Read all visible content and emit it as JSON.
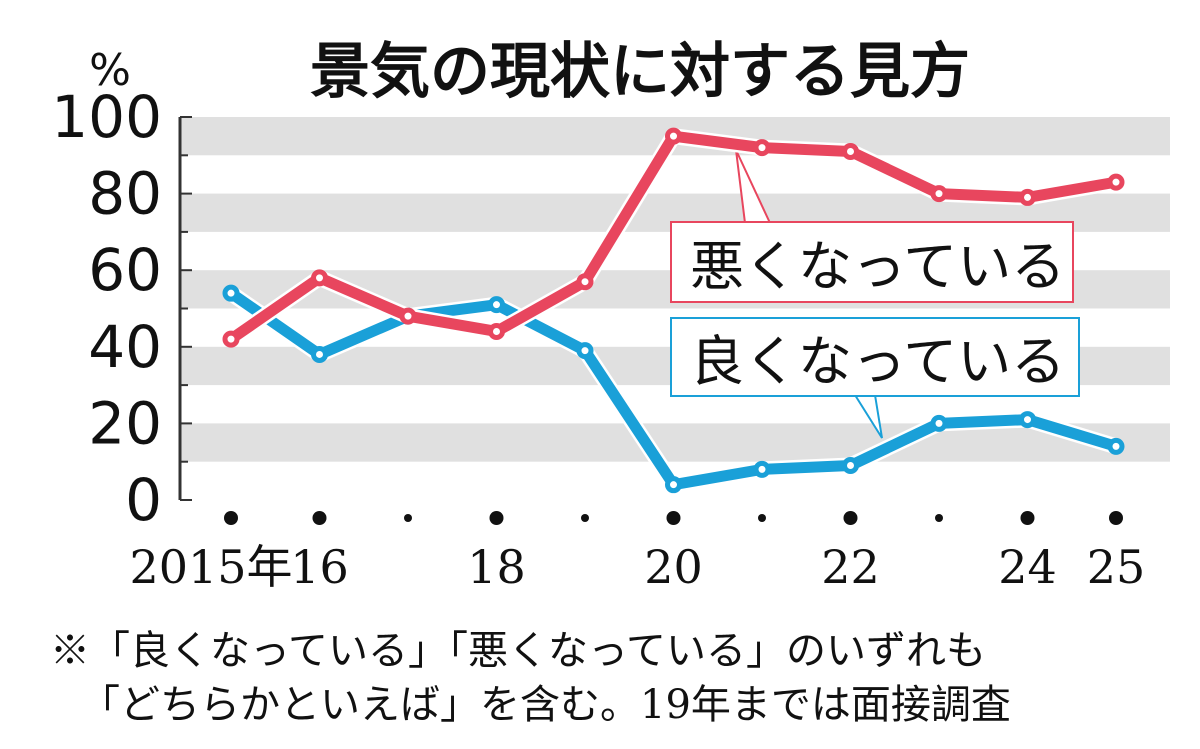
{
  "chart_data": {
    "type": "line",
    "title": "景気の現状に対する見方",
    "ylabel": "%",
    "ylim": [
      0,
      100
    ],
    "yticks": [
      0,
      20,
      40,
      60,
      80,
      100
    ],
    "x": [
      2015,
      2016,
      2017,
      2018,
      2019,
      2020,
      2021,
      2022,
      2023,
      2024,
      2025
    ],
    "xtick_labels": [
      "2015年",
      "16",
      "",
      "18",
      "",
      "20",
      "",
      "22",
      "",
      "24",
      "25"
    ],
    "grid": "horizontal bands",
    "series": [
      {
        "name": "悪くなっている",
        "color": "#e8465e",
        "values": [
          42,
          58,
          48,
          44,
          57,
          95,
          92,
          91,
          80,
          79,
          83
        ]
      },
      {
        "name": "良くなっている",
        "color": "#1aa0d8",
        "values": [
          54,
          38,
          48,
          51,
          39,
          4,
          8,
          9,
          20,
          21,
          14
        ]
      }
    ],
    "notes": [
      "※「良くなっている」「悪くなっている」のいずれも",
      "「どちらかといえば」を含む。19年までは面接調査"
    ]
  }
}
